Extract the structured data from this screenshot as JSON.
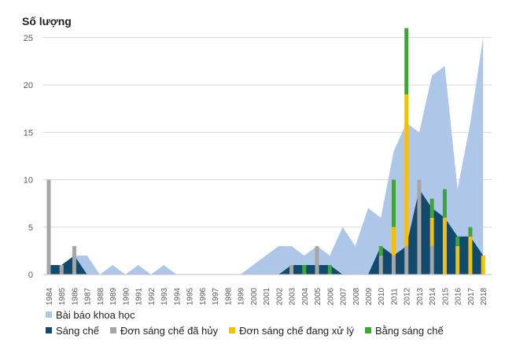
{
  "chart_data": {
    "type": "bar",
    "ylabel": "Số lượng",
    "ylim": [
      0,
      25
    ],
    "yticks": [
      0,
      5,
      10,
      15,
      20,
      25
    ],
    "grid": true,
    "legend_position": "bottom",
    "categories": [
      "1984",
      "1985",
      "1986",
      "1987",
      "1988",
      "1989",
      "1990",
      "1991",
      "1992",
      "1993",
      "1994",
      "1995",
      "1996",
      "1997",
      "1998",
      "1999",
      "2000",
      "2001",
      "2002",
      "2003",
      "2004",
      "2005",
      "2006",
      "2007",
      "2008",
      "2009",
      "2010",
      "2011",
      "2012",
      "2013",
      "2014",
      "2015",
      "2016",
      "2017",
      "2018"
    ],
    "series": [
      {
        "name": "Bài báo khoa học",
        "kind": "area",
        "color": "#aec6e8",
        "values": [
          1,
          1,
          2,
          2,
          0,
          1,
          0,
          1,
          0,
          1,
          0,
          0,
          0,
          0,
          0,
          0,
          1,
          2,
          3,
          3,
          2,
          3,
          2,
          5,
          3,
          7,
          6,
          13,
          16,
          15,
          21,
          22,
          9,
          16,
          25
        ]
      },
      {
        "name": "Sáng chế",
        "kind": "area",
        "color": "#104a6e",
        "values": [
          1,
          1,
          2,
          0,
          0,
          0,
          0,
          0,
          0,
          0,
          0,
          0,
          0,
          0,
          0,
          0,
          0,
          0,
          0,
          1,
          1,
          1,
          1,
          0,
          0,
          0,
          3,
          2,
          3,
          9,
          7,
          6,
          4,
          4,
          2
        ]
      },
      {
        "name": "Đơn sáng chế đã hủy",
        "kind": "bar",
        "color": "#a6a6a6",
        "values": [
          10,
          1,
          3,
          0,
          0,
          0,
          0,
          0,
          0,
          0,
          0,
          0,
          0,
          0,
          0,
          0,
          0,
          0,
          0,
          1,
          0,
          3,
          0,
          0,
          0,
          0,
          2,
          2,
          3,
          10,
          3,
          0,
          0,
          0,
          0
        ]
      },
      {
        "name": "Đơn sáng chế đang xử lý",
        "kind": "bar",
        "color": "#f5c000",
        "values": [
          0,
          0,
          0,
          0,
          0,
          0,
          0,
          0,
          0,
          0,
          0,
          0,
          0,
          0,
          0,
          0,
          0,
          0,
          0,
          0,
          0,
          0,
          0,
          0,
          0,
          0,
          0,
          3,
          16,
          0,
          3,
          6,
          3,
          4,
          2
        ]
      },
      {
        "name": "Bằng sáng chế",
        "kind": "bar",
        "color": "#3fa535",
        "values": [
          0,
          0,
          0,
          0,
          0,
          0,
          0,
          0,
          0,
          0,
          0,
          0,
          0,
          0,
          0,
          0,
          0,
          0,
          0,
          0,
          1,
          0,
          1,
          0,
          0,
          0,
          1,
          5,
          7,
          0,
          2,
          3,
          1,
          1,
          0
        ]
      }
    ]
  }
}
